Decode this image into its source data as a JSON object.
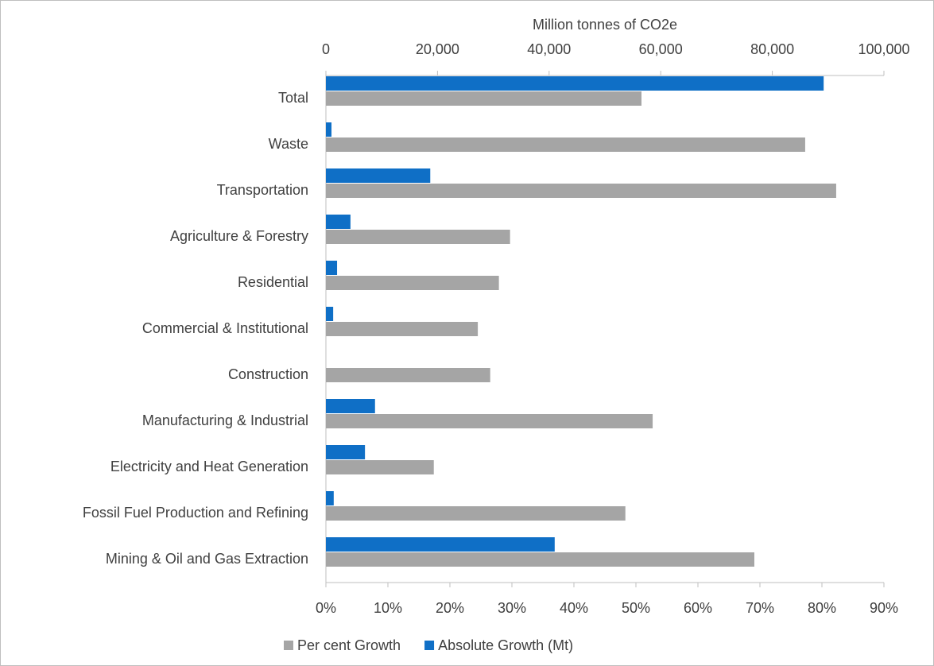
{
  "chart_data": {
    "type": "bar",
    "orientation": "horizontal",
    "x2label": "Million tonnes of CO2e",
    "categories": [
      "Total",
      "Waste",
      "Transportation",
      "Agriculture & Forestry",
      "Residential",
      "Commercial & Institutional",
      "Construction",
      "Manufacturing & Industrial",
      "Electricity and Heat Generation",
      "Fossil Fuel Production and Refining",
      "Mining & Oil and Gas Extraction"
    ],
    "series": [
      {
        "name": "Per cent Growth",
        "color": "#a5a5a5",
        "axis": "x",
        "values": [
          50.9,
          77.3,
          82.3,
          29.7,
          27.9,
          24.5,
          26.5,
          52.7,
          17.4,
          48.3,
          69.1
        ]
      },
      {
        "name": "Absolute Growth (Mt)",
        "color": "#0f6fc6",
        "axis": "x2",
        "values": [
          89200,
          1000,
          18700,
          4400,
          2000,
          1300,
          0,
          8800,
          7000,
          1400,
          41000
        ]
      }
    ],
    "xlim": [
      0,
      90
    ],
    "xticks": [
      {
        "value": 0,
        "label": "0%"
      },
      {
        "value": 10,
        "label": "10%"
      },
      {
        "value": 20,
        "label": "20%"
      },
      {
        "value": 30,
        "label": "30%"
      },
      {
        "value": 40,
        "label": "40%"
      },
      {
        "value": 50,
        "label": "50%"
      },
      {
        "value": 60,
        "label": "60%"
      },
      {
        "value": 70,
        "label": "70%"
      },
      {
        "value": 80,
        "label": "80%"
      },
      {
        "value": 90,
        "label": "90%"
      }
    ],
    "x2lim": [
      0,
      100000
    ],
    "x2ticks": [
      0,
      {
        "value": 20000,
        "label": "20,000"
      },
      {
        "value": 40000,
        "label": "40,000"
      },
      {
        "value": 60000,
        "label": "60,000"
      },
      {
        "value": 80000,
        "label": "80,000"
      },
      {
        "value": 100000,
        "label": "100,000"
      }
    ],
    "legend": "bottom"
  }
}
